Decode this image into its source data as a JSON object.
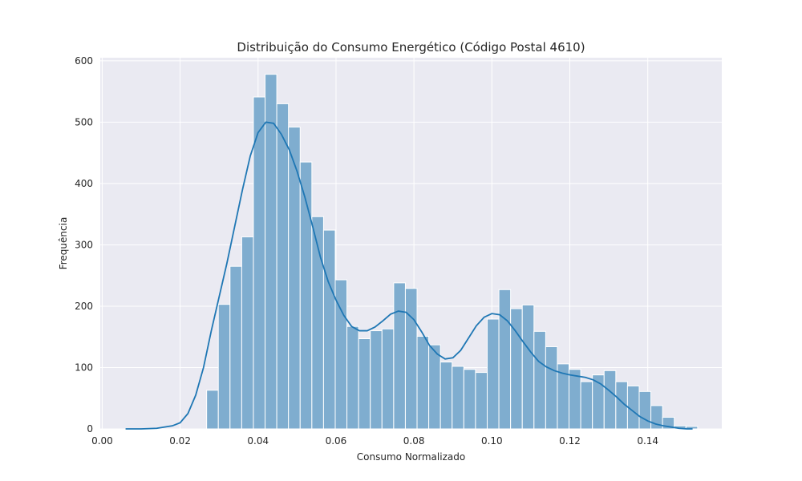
{
  "chart_data": {
    "type": "bar",
    "title": "Distribuição do Consumo Energético (Código Postal 4610)",
    "xlabel": "Consumo Normalizado",
    "ylabel": "Frequência",
    "xlim": [
      -0.0005,
      0.159
    ],
    "ylim": [
      0,
      605
    ],
    "x_ticks": [
      0.0,
      0.02,
      0.04,
      0.06,
      0.08,
      0.1,
      0.12,
      0.14
    ],
    "x_tick_labels": [
      "0.00",
      "0.02",
      "0.04",
      "0.06",
      "0.08",
      "0.10",
      "0.12",
      "0.14"
    ],
    "y_ticks": [
      0,
      100,
      200,
      300,
      400,
      500,
      600
    ],
    "y_tick_labels": [
      "0",
      "100",
      "200",
      "300",
      "400",
      "500",
      "600"
    ],
    "grid": true,
    "bin_start": 0.0268,
    "bin_width": 0.003,
    "bin_counts": [
      63,
      203,
      265,
      313,
      541,
      578,
      530,
      492,
      435,
      346,
      324,
      243,
      167,
      147,
      160,
      163,
      238,
      229,
      151,
      137,
      109,
      102,
      97,
      92,
      179,
      227,
      196,
      202,
      159,
      134,
      106,
      97,
      77,
      88,
      95,
      77,
      70,
      61,
      38,
      19,
      5,
      4
    ],
    "kde": {
      "x": [
        0.006,
        0.01,
        0.014,
        0.018,
        0.02,
        0.022,
        0.024,
        0.026,
        0.028,
        0.03,
        0.032,
        0.034,
        0.036,
        0.038,
        0.04,
        0.042,
        0.044,
        0.046,
        0.048,
        0.05,
        0.052,
        0.054,
        0.056,
        0.058,
        0.06,
        0.062,
        0.064,
        0.066,
        0.068,
        0.07,
        0.072,
        0.074,
        0.076,
        0.078,
        0.08,
        0.082,
        0.084,
        0.086,
        0.088,
        0.09,
        0.092,
        0.094,
        0.096,
        0.098,
        0.1,
        0.102,
        0.104,
        0.106,
        0.108,
        0.11,
        0.112,
        0.114,
        0.116,
        0.118,
        0.12,
        0.122,
        0.124,
        0.126,
        0.128,
        0.13,
        0.132,
        0.134,
        0.136,
        0.138,
        0.14,
        0.142,
        0.144,
        0.146,
        0.148,
        0.15,
        0.1515
      ],
      "y": [
        0,
        0,
        1,
        5,
        10,
        25,
        55,
        100,
        160,
        215,
        270,
        330,
        390,
        445,
        483,
        500,
        498,
        480,
        455,
        420,
        378,
        330,
        280,
        240,
        210,
        185,
        167,
        160,
        160,
        166,
        176,
        187,
        192,
        190,
        178,
        158,
        136,
        122,
        114,
        116,
        128,
        148,
        168,
        182,
        188,
        186,
        176,
        160,
        142,
        125,
        110,
        101,
        95,
        91,
        88,
        86,
        84,
        80,
        73,
        63,
        52,
        40,
        30,
        20,
        13,
        8,
        5,
        3,
        1,
        0,
        0
      ]
    },
    "bar_color": "#7fadcf",
    "line_color": "#1f77b4",
    "background_color": "#eaeaf2"
  }
}
